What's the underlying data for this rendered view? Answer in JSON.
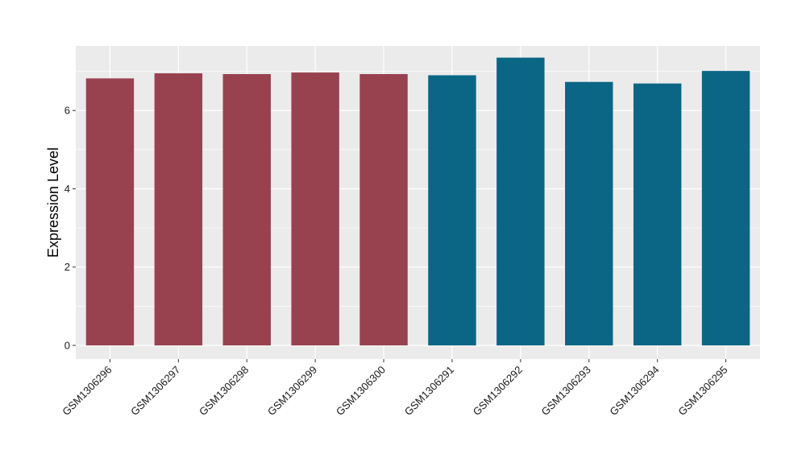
{
  "chart_data": {
    "type": "bar",
    "categories": [
      "GSM1306296",
      "GSM1306297",
      "GSM1306298",
      "GSM1306299",
      "GSM1306300",
      "GSM1306291",
      "GSM1306292",
      "GSM1306293",
      "GSM1306294",
      "GSM1306295"
    ],
    "values": [
      6.82,
      6.95,
      6.93,
      6.97,
      6.93,
      6.9,
      7.35,
      6.73,
      6.69,
      7.01
    ],
    "bar_colors": [
      "#99424f",
      "#99424f",
      "#99424f",
      "#99424f",
      "#99424f",
      "#0b6685",
      "#0b6685",
      "#0b6685",
      "#0b6685",
      "#0b6685"
    ],
    "xlabel": "",
    "ylabel": "Expression Level",
    "ylim": [
      -0.35,
      7.65
    ],
    "yticks": [
      0,
      2,
      4,
      6
    ],
    "grid": true,
    "legend": "none",
    "panel_background": "#ebebeb",
    "grid_color": "#ffffff"
  }
}
